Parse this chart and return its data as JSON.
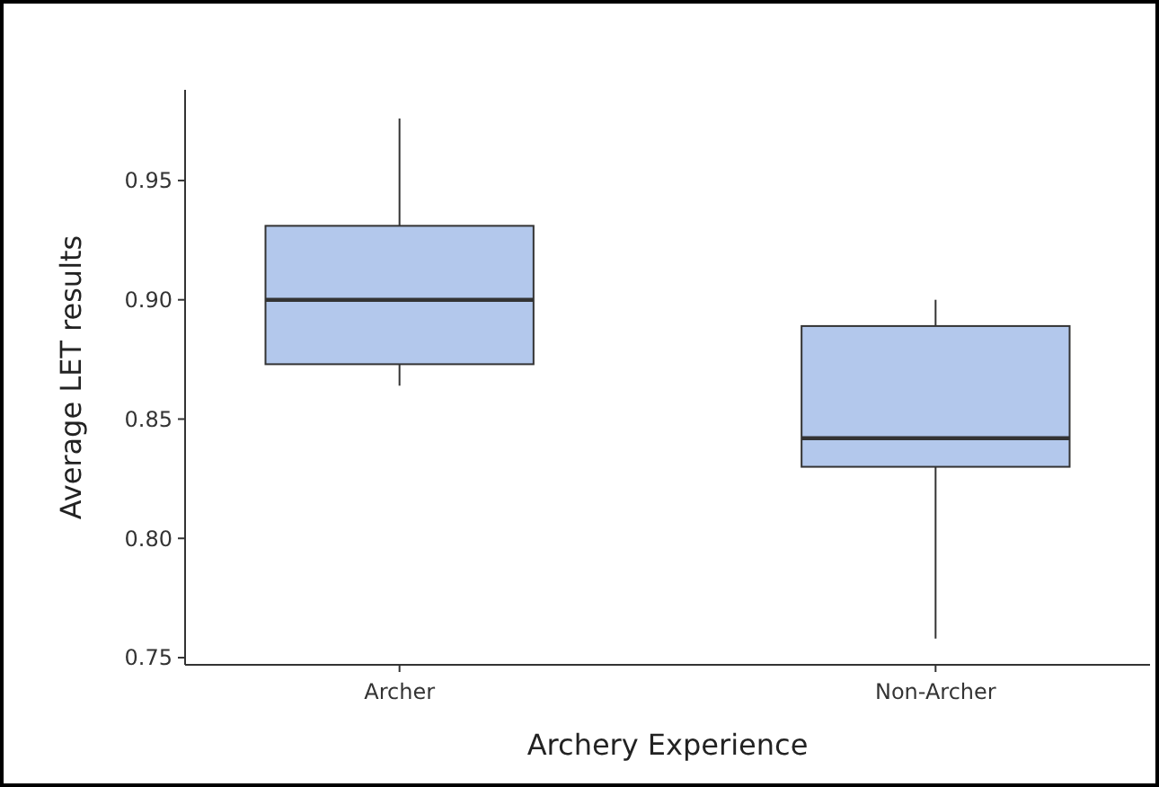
{
  "chart_data": {
    "type": "box",
    "xlabel": "Archery Experience",
    "ylabel": "Average LET results",
    "categories": [
      "Archer",
      "Non-Archer"
    ],
    "boxes": [
      {
        "low": 0.864,
        "q1": 0.873,
        "median": 0.9,
        "q3": 0.931,
        "high": 0.976
      },
      {
        "low": 0.758,
        "q1": 0.83,
        "median": 0.842,
        "q3": 0.889,
        "high": 0.9
      }
    ],
    "color": "#b3c8ec",
    "ylim": [
      0.747,
      0.988
    ],
    "yticks": [
      {
        "value": 0.75,
        "label": "0.75"
      },
      {
        "value": 0.8,
        "label": "0.80"
      },
      {
        "value": 0.85,
        "label": "0.85"
      },
      {
        "value": 0.9,
        "label": "0.90"
      },
      {
        "value": 0.95,
        "label": "0.95"
      }
    ],
    "grid": false
  }
}
